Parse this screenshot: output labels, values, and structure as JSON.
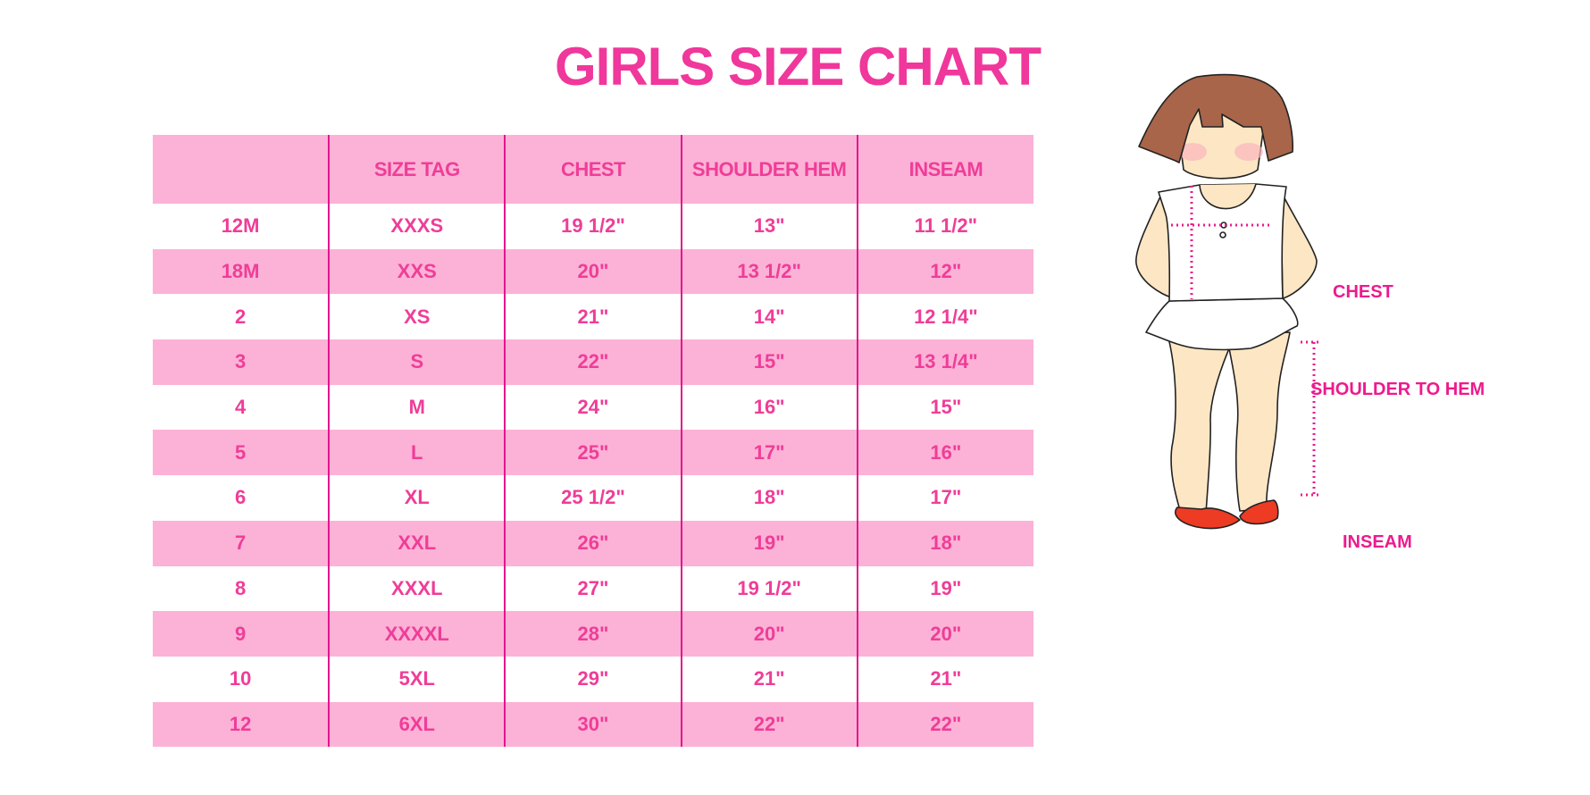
{
  "title": "GIRLS SIZE CHART",
  "table": {
    "headers": [
      "",
      "SIZE TAG",
      "CHEST",
      "SHOULDER HEM",
      "INSEAM"
    ],
    "rows": [
      [
        "12M",
        "XXXS",
        "19 1/2\"",
        "13\"",
        "11 1/2\""
      ],
      [
        "18M",
        "XXS",
        "20\"",
        "13 1/2\"",
        "12\""
      ],
      [
        "2",
        "XS",
        "21\"",
        "14\"",
        "12 1/4\""
      ],
      [
        "3",
        "S",
        "22\"",
        "15\"",
        "13 1/4\""
      ],
      [
        "4",
        "M",
        "24\"",
        "16\"",
        "15\""
      ],
      [
        "5",
        "L",
        "25\"",
        "17\"",
        "16\""
      ],
      [
        "6",
        "XL",
        "25 1/2\"",
        "18\"",
        "17\""
      ],
      [
        "7",
        "XXL",
        "26\"",
        "19\"",
        "18\""
      ],
      [
        "8",
        "XXXL",
        "27\"",
        "19 1/2\"",
        "19\""
      ],
      [
        "9",
        "XXXXL",
        "28\"",
        "20\"",
        "20\""
      ],
      [
        "10",
        "5XL",
        "29\"",
        "21\"",
        "21\""
      ],
      [
        "12",
        "6XL",
        "30\"",
        "22\"",
        "22\""
      ]
    ]
  },
  "figure": {
    "chest_label": "CHEST",
    "shoulder_label": "SHOULDER TO HEM",
    "inseam_label": "INSEAM"
  },
  "colors": {
    "accent": "#f0379b",
    "row_fill": "#fcb2d6",
    "divider": "#e2168f",
    "hair": "#a8654a",
    "skin": "#fde6c4",
    "shoes": "#ee3b24"
  }
}
